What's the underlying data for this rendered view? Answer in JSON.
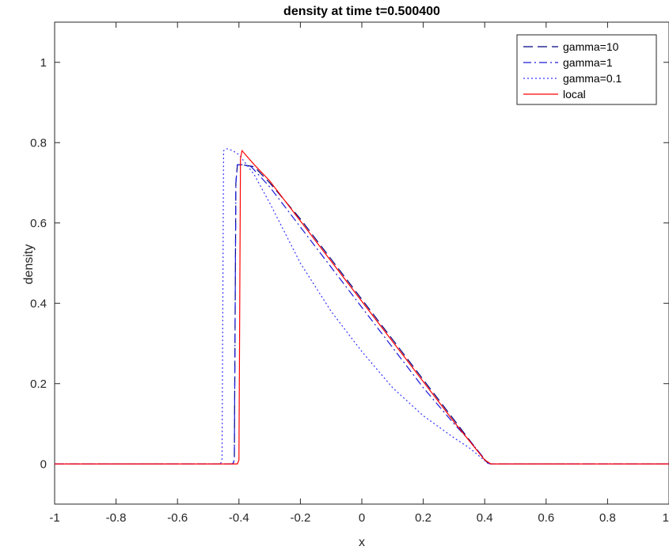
{
  "chart_data": {
    "type": "line",
    "title": "density at time t=0.500400",
    "xlabel": "x",
    "ylabel": "density",
    "xlim": [
      -1,
      1
    ],
    "ylim": [
      -0.1,
      1.1
    ],
    "xticks": [
      "-1",
      "-0.8",
      "-0.6",
      "-0.4",
      "-0.2",
      "0",
      "0.2",
      "0.4",
      "0.6",
      "0.8",
      "1"
    ],
    "yticks": [
      "0",
      "0.2",
      "0.4",
      "0.6",
      "0.8",
      "1"
    ],
    "grid": false,
    "legend_position": "top-right",
    "series": [
      {
        "name": "gamma=10",
        "style": "dashed",
        "color": "#000080",
        "points": [
          [
            -1,
            0
          ],
          [
            -0.42,
            0
          ],
          [
            -0.415,
            0.01
          ],
          [
            -0.41,
            0.7
          ],
          [
            -0.405,
            0.745
          ],
          [
            -0.39,
            0.745
          ],
          [
            -0.35,
            0.74
          ],
          [
            -0.3,
            0.7
          ],
          [
            -0.2,
            0.61
          ],
          [
            -0.1,
            0.51
          ],
          [
            0,
            0.41
          ],
          [
            0.1,
            0.31
          ],
          [
            0.2,
            0.21
          ],
          [
            0.3,
            0.11
          ],
          [
            0.36,
            0.05
          ],
          [
            0.41,
            0.002
          ],
          [
            0.42,
            0
          ],
          [
            1,
            0
          ]
        ]
      },
      {
        "name": "gamma=1",
        "style": "dashdot",
        "color": "#1a1ad9",
        "points": [
          [
            -1,
            0
          ],
          [
            -0.42,
            0
          ],
          [
            -0.415,
            0.01
          ],
          [
            -0.41,
            0.7
          ],
          [
            -0.405,
            0.745
          ],
          [
            -0.39,
            0.745
          ],
          [
            -0.36,
            0.74
          ],
          [
            -0.3,
            0.69
          ],
          [
            -0.2,
            0.59
          ],
          [
            -0.1,
            0.49
          ],
          [
            0,
            0.39
          ],
          [
            0.1,
            0.29
          ],
          [
            0.2,
            0.19
          ],
          [
            0.3,
            0.1
          ],
          [
            0.36,
            0.05
          ],
          [
            0.41,
            0.002
          ],
          [
            0.42,
            0
          ],
          [
            1,
            0
          ]
        ]
      },
      {
        "name": "gamma=0.1",
        "style": "dotted",
        "color": "#3333ff",
        "points": [
          [
            -1,
            0
          ],
          [
            -0.46,
            0
          ],
          [
            -0.455,
            0.01
          ],
          [
            -0.45,
            0.78
          ],
          [
            -0.44,
            0.785
          ],
          [
            -0.42,
            0.78
          ],
          [
            -0.4,
            0.77
          ],
          [
            -0.35,
            0.72
          ],
          [
            -0.3,
            0.65
          ],
          [
            -0.2,
            0.5
          ],
          [
            -0.1,
            0.38
          ],
          [
            0,
            0.28
          ],
          [
            0.1,
            0.19
          ],
          [
            0.2,
            0.12
          ],
          [
            0.3,
            0.065
          ],
          [
            0.35,
            0.04
          ],
          [
            0.41,
            0.002
          ],
          [
            0.42,
            0
          ],
          [
            1,
            0
          ]
        ]
      },
      {
        "name": "local",
        "style": "solid",
        "color": "#ff0000",
        "points": [
          [
            -1,
            0
          ],
          [
            -0.405,
            0
          ],
          [
            -0.4,
            0.01
          ],
          [
            -0.395,
            0.76
          ],
          [
            -0.39,
            0.78
          ],
          [
            -0.35,
            0.745
          ],
          [
            -0.3,
            0.705
          ],
          [
            -0.2,
            0.605
          ],
          [
            -0.1,
            0.505
          ],
          [
            0,
            0.405
          ],
          [
            0.1,
            0.305
          ],
          [
            0.2,
            0.205
          ],
          [
            0.3,
            0.105
          ],
          [
            0.4,
            0.01
          ],
          [
            0.42,
            0
          ],
          [
            1,
            0
          ]
        ]
      }
    ]
  }
}
